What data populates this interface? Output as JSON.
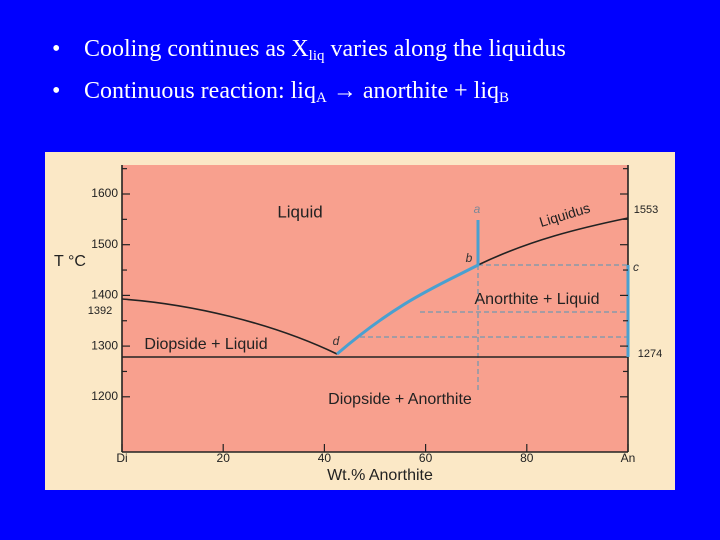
{
  "bullets": [
    {
      "marker": "•",
      "segments": [
        {
          "text": "Cooling continues as X",
          "style": "normal"
        },
        {
          "text": "liq",
          "style": "subscript"
        },
        {
          "text": " varies along the liquidus",
          "style": "normal"
        }
      ]
    },
    {
      "marker": "•",
      "segments": [
        {
          "text": "Continuous reaction: liq",
          "style": "normal"
        },
        {
          "text": "A",
          "style": "subscript"
        },
        {
          "text": " → anorthite + liq",
          "style": "normal"
        },
        {
          "text": "B",
          "style": "subscript"
        }
      ]
    }
  ],
  "figure": {
    "y_axis_label": "T °C",
    "y_ticks": [
      "1600",
      "1500",
      "1400",
      "1300",
      "1200"
    ],
    "y_special": "1392",
    "x_ticks": [
      "Di",
      "20",
      "40",
      "60",
      "80",
      "An"
    ],
    "x_axis_label": "Wt.% Anorthite",
    "curve_label": "Liquidus",
    "temperature_labels": [
      "1553",
      "1274"
    ],
    "region_labels": [
      "Liquid",
      "Anorthite + Liquid",
      "Diopside + Liquid",
      "Diopside + Anorthite"
    ],
    "point_labels": [
      "a",
      "b",
      "c",
      "d"
    ]
  }
}
